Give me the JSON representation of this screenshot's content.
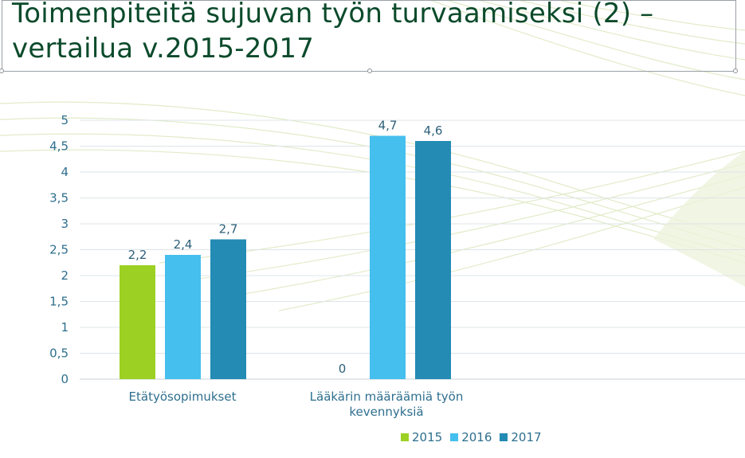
{
  "slide": {
    "title_line1": "Toimenpiteitä sujuvan työn turvaamiseksi (2) –",
    "title_line2": "vertailua v.2015-2017"
  },
  "chart_data": {
    "type": "bar",
    "categories": [
      "Etätyösopimukset",
      "Lääkärin määräämiä työn kevennyksiä"
    ],
    "series": [
      {
        "name": "2015",
        "values": [
          2.2,
          0
        ],
        "color": "#9cd124"
      },
      {
        "name": "2016",
        "values": [
          2.4,
          4.7
        ],
        "color": "#45bfee"
      },
      {
        "name": "2017",
        "values": [
          2.7,
          4.6
        ],
        "color": "#238bb4"
      }
    ],
    "data_labels": [
      [
        "2,2",
        "0"
      ],
      [
        "2,4",
        "4,7"
      ],
      [
        "2,7",
        "4,6"
      ]
    ],
    "yticks": [
      "0",
      "0,5",
      "1",
      "1,5",
      "2",
      "2,5",
      "3",
      "3,5",
      "4",
      "4,5",
      "5"
    ],
    "ylim": [
      0,
      5
    ],
    "grid": true,
    "legend_position": "bottom-right"
  }
}
